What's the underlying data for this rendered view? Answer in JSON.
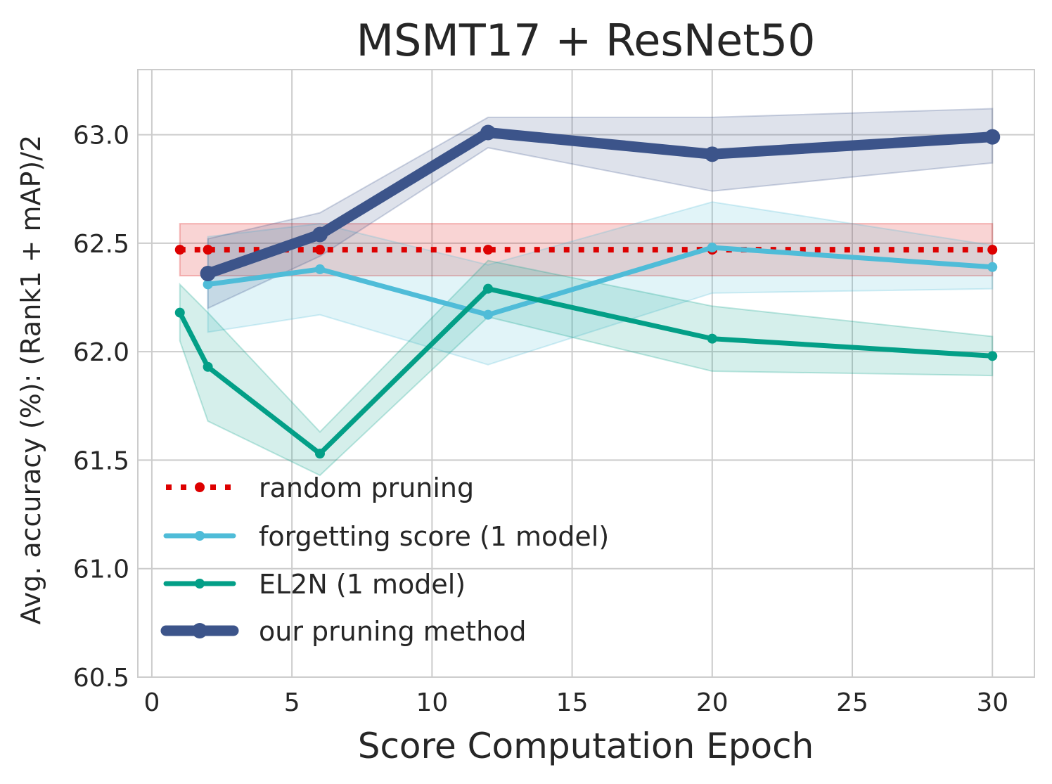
{
  "chart_data": {
    "type": "line",
    "title": "MSMT17 + ResNet50",
    "xlabel": "Score Computation Epoch",
    "ylabel": "Avg. accuracy (%): (Rank1 + mAP)/2",
    "xlim": [
      -0.5,
      31.5
    ],
    "ylim": [
      60.5,
      63.3
    ],
    "xticks": [
      0,
      5,
      10,
      15,
      20,
      25,
      30
    ],
    "xtick_labels": [
      "0",
      "5",
      "10",
      "15",
      "20",
      "25",
      "30"
    ],
    "yticks": [
      60.5,
      61.0,
      61.5,
      62.0,
      62.5,
      63.0
    ],
    "ytick_labels": [
      "60.5",
      "61.0",
      "61.5",
      "62.0",
      "62.5",
      "63.0"
    ],
    "grid": true,
    "legend_position": "lower-left",
    "series": [
      {
        "name": "random pruning",
        "color": "#dd0000",
        "style": "dotted",
        "x": [
          1,
          2,
          6,
          12,
          20,
          30
        ],
        "y": [
          62.47,
          62.47,
          62.47,
          62.47,
          62.47,
          62.47
        ],
        "band_low": [
          62.35,
          62.35,
          62.35,
          62.35,
          62.35,
          62.35
        ],
        "band_high": [
          62.59,
          62.59,
          62.59,
          62.59,
          62.59,
          62.59
        ]
      },
      {
        "name": "forgetting score (1 model)",
        "color": "#4fbcd8",
        "style": "solid",
        "x": [
          2,
          6,
          12,
          20,
          30
        ],
        "y": [
          62.31,
          62.38,
          62.17,
          62.48,
          62.39
        ],
        "band_low": [
          62.09,
          62.17,
          61.94,
          62.27,
          62.29
        ],
        "band_high": [
          62.53,
          62.59,
          62.4,
          62.69,
          62.49
        ]
      },
      {
        "name": "EL2N (1 model)",
        "color": "#039f87",
        "style": "solid",
        "x": [
          1,
          2,
          6,
          12,
          20,
          30
        ],
        "y": [
          62.18,
          61.93,
          61.53,
          62.29,
          62.06,
          61.98
        ],
        "band_low": [
          62.05,
          61.68,
          61.43,
          62.16,
          61.91,
          61.89
        ],
        "band_high": [
          62.31,
          62.18,
          61.63,
          62.42,
          62.21,
          62.07
        ]
      },
      {
        "name": "our pruning method",
        "color": "#3c548a",
        "style": "solid",
        "x": [
          2,
          6,
          12,
          20,
          30
        ],
        "y": [
          62.36,
          62.54,
          63.01,
          62.91,
          62.99
        ],
        "band_low": [
          62.2,
          62.44,
          62.94,
          62.74,
          62.87
        ],
        "band_high": [
          62.52,
          62.64,
          63.08,
          63.08,
          63.12
        ]
      }
    ]
  }
}
